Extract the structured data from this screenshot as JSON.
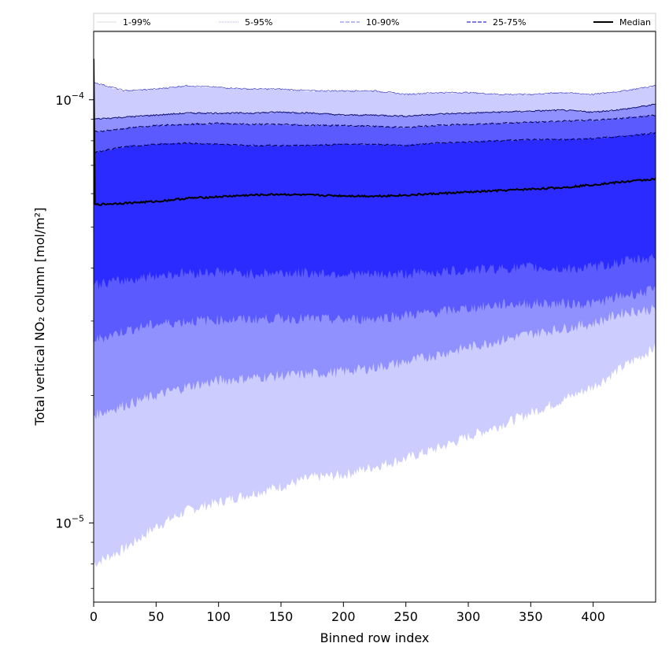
{
  "chart_data": {
    "type": "area",
    "title": "",
    "xlabel": "Binned row index",
    "ylabel": "Total vertical NO₂ column [mol/m²]",
    "xlim": [
      0,
      450
    ],
    "ylim": [
      6.5e-06,
      0.000145
    ],
    "yscale": "log",
    "grid": false,
    "legend": {
      "placement": "top",
      "entries": [
        "1-99%",
        "5-95%",
        "10-90%",
        "25-75%",
        "Median"
      ]
    },
    "x_ticks": [
      0,
      50,
      100,
      150,
      200,
      250,
      300,
      350,
      400
    ],
    "y_ticks": [
      {
        "value": 0.0001,
        "label": "10",
        "exponent": "−4"
      },
      {
        "value": 1e-05,
        "label": "10",
        "exponent": "−5"
      }
    ],
    "x": [
      0,
      25,
      50,
      75,
      100,
      125,
      150,
      175,
      200,
      225,
      250,
      275,
      300,
      325,
      350,
      375,
      400,
      425,
      450
    ],
    "series": [
      {
        "name": "1-99%",
        "band": true,
        "color": "#ccccff",
        "lower": [
          8e-06,
          8.7e-06,
          9.8e-06,
          1.07e-05,
          1.12e-05,
          1.17e-05,
          1.22e-05,
          1.28e-05,
          1.3e-05,
          1.36e-05,
          1.42e-05,
          1.5e-05,
          1.6e-05,
          1.7e-05,
          1.82e-05,
          1.95e-05,
          2.1e-05,
          2.35e-05,
          2.6e-05
        ],
        "upper": [
          0.00011,
          0.000105,
          0.000106,
          0.000108,
          0.000107,
          0.000106,
          0.000106,
          0.000105,
          0.000105,
          0.000105,
          0.000103,
          0.000104,
          0.000104,
          0.000103,
          0.000103,
          0.000104,
          0.000103,
          0.000105,
          0.000108
        ]
      },
      {
        "name": "5-95%",
        "band": true,
        "color": "#9090ff",
        "lower": [
          1.8e-05,
          1.9e-05,
          2e-05,
          2.1e-05,
          2.17e-05,
          2.2e-05,
          2.23e-05,
          2.25e-05,
          2.28e-05,
          2.33e-05,
          2.4e-05,
          2.5e-05,
          2.6e-05,
          2.7e-05,
          2.8e-05,
          2.88e-05,
          2.96e-05,
          3.15e-05,
          3.2e-05
        ],
        "upper": [
          9e-05,
          9.1e-05,
          9.2e-05,
          9.3e-05,
          9.3e-05,
          9.3e-05,
          9.35e-05,
          9.3e-05,
          9.2e-05,
          9.2e-05,
          9.15e-05,
          9.25e-05,
          9.3e-05,
          9.35e-05,
          9.4e-05,
          9.45e-05,
          9.35e-05,
          9.5e-05,
          9.75e-05
        ]
      },
      {
        "name": "10-90%",
        "band": true,
        "color": "#5a5aff",
        "lower": [
          2.7e-05,
          2.85e-05,
          2.95e-05,
          3e-05,
          3.02e-05,
          3.03e-05,
          3.05e-05,
          3.04e-05,
          3.02e-05,
          3.05e-05,
          3.1e-05,
          3.15e-05,
          3.22e-05,
          3.28e-05,
          3.3e-05,
          3.3e-05,
          3.3e-05,
          3.45e-05,
          3.55e-05
        ],
        "upper": [
          8.4e-05,
          8.55e-05,
          8.7e-05,
          8.75e-05,
          8.8e-05,
          8.75e-05,
          8.75e-05,
          8.7e-05,
          8.7e-05,
          8.65e-05,
          8.6e-05,
          8.7e-05,
          8.75e-05,
          8.8e-05,
          8.85e-05,
          8.9e-05,
          8.95e-05,
          9.05e-05,
          9.2e-05
        ]
      },
      {
        "name": "25-75%",
        "band": true,
        "color": "#2b2bff",
        "lower": [
          3.65e-05,
          3.75e-05,
          3.85e-05,
          3.9e-05,
          3.92e-05,
          3.88e-05,
          3.9e-05,
          3.9e-05,
          3.88e-05,
          3.86e-05,
          3.88e-05,
          3.92e-05,
          3.96e-05,
          4e-05,
          4.02e-05,
          3.98e-05,
          4.02e-05,
          4.15e-05,
          4.25e-05
        ],
        "upper": [
          7.5e-05,
          7.75e-05,
          7.85e-05,
          7.9e-05,
          7.85e-05,
          7.8e-05,
          7.8e-05,
          7.8e-05,
          7.85e-05,
          7.85e-05,
          7.8e-05,
          7.9e-05,
          7.95e-05,
          8e-05,
          8.05e-05,
          8.05e-05,
          8.1e-05,
          8.2e-05,
          8.35e-05
        ]
      },
      {
        "name": "Median",
        "band": false,
        "color": "#000000",
        "values": [
          5.65e-05,
          5.7e-05,
          5.75e-05,
          5.85e-05,
          5.9e-05,
          5.95e-05,
          5.98e-05,
          5.95e-05,
          5.93e-05,
          5.92e-05,
          5.95e-05,
          6e-05,
          6.05e-05,
          6.1e-05,
          6.15e-05,
          6.2e-05,
          6.3e-05,
          6.4e-05,
          6.5e-05
        ]
      }
    ]
  }
}
